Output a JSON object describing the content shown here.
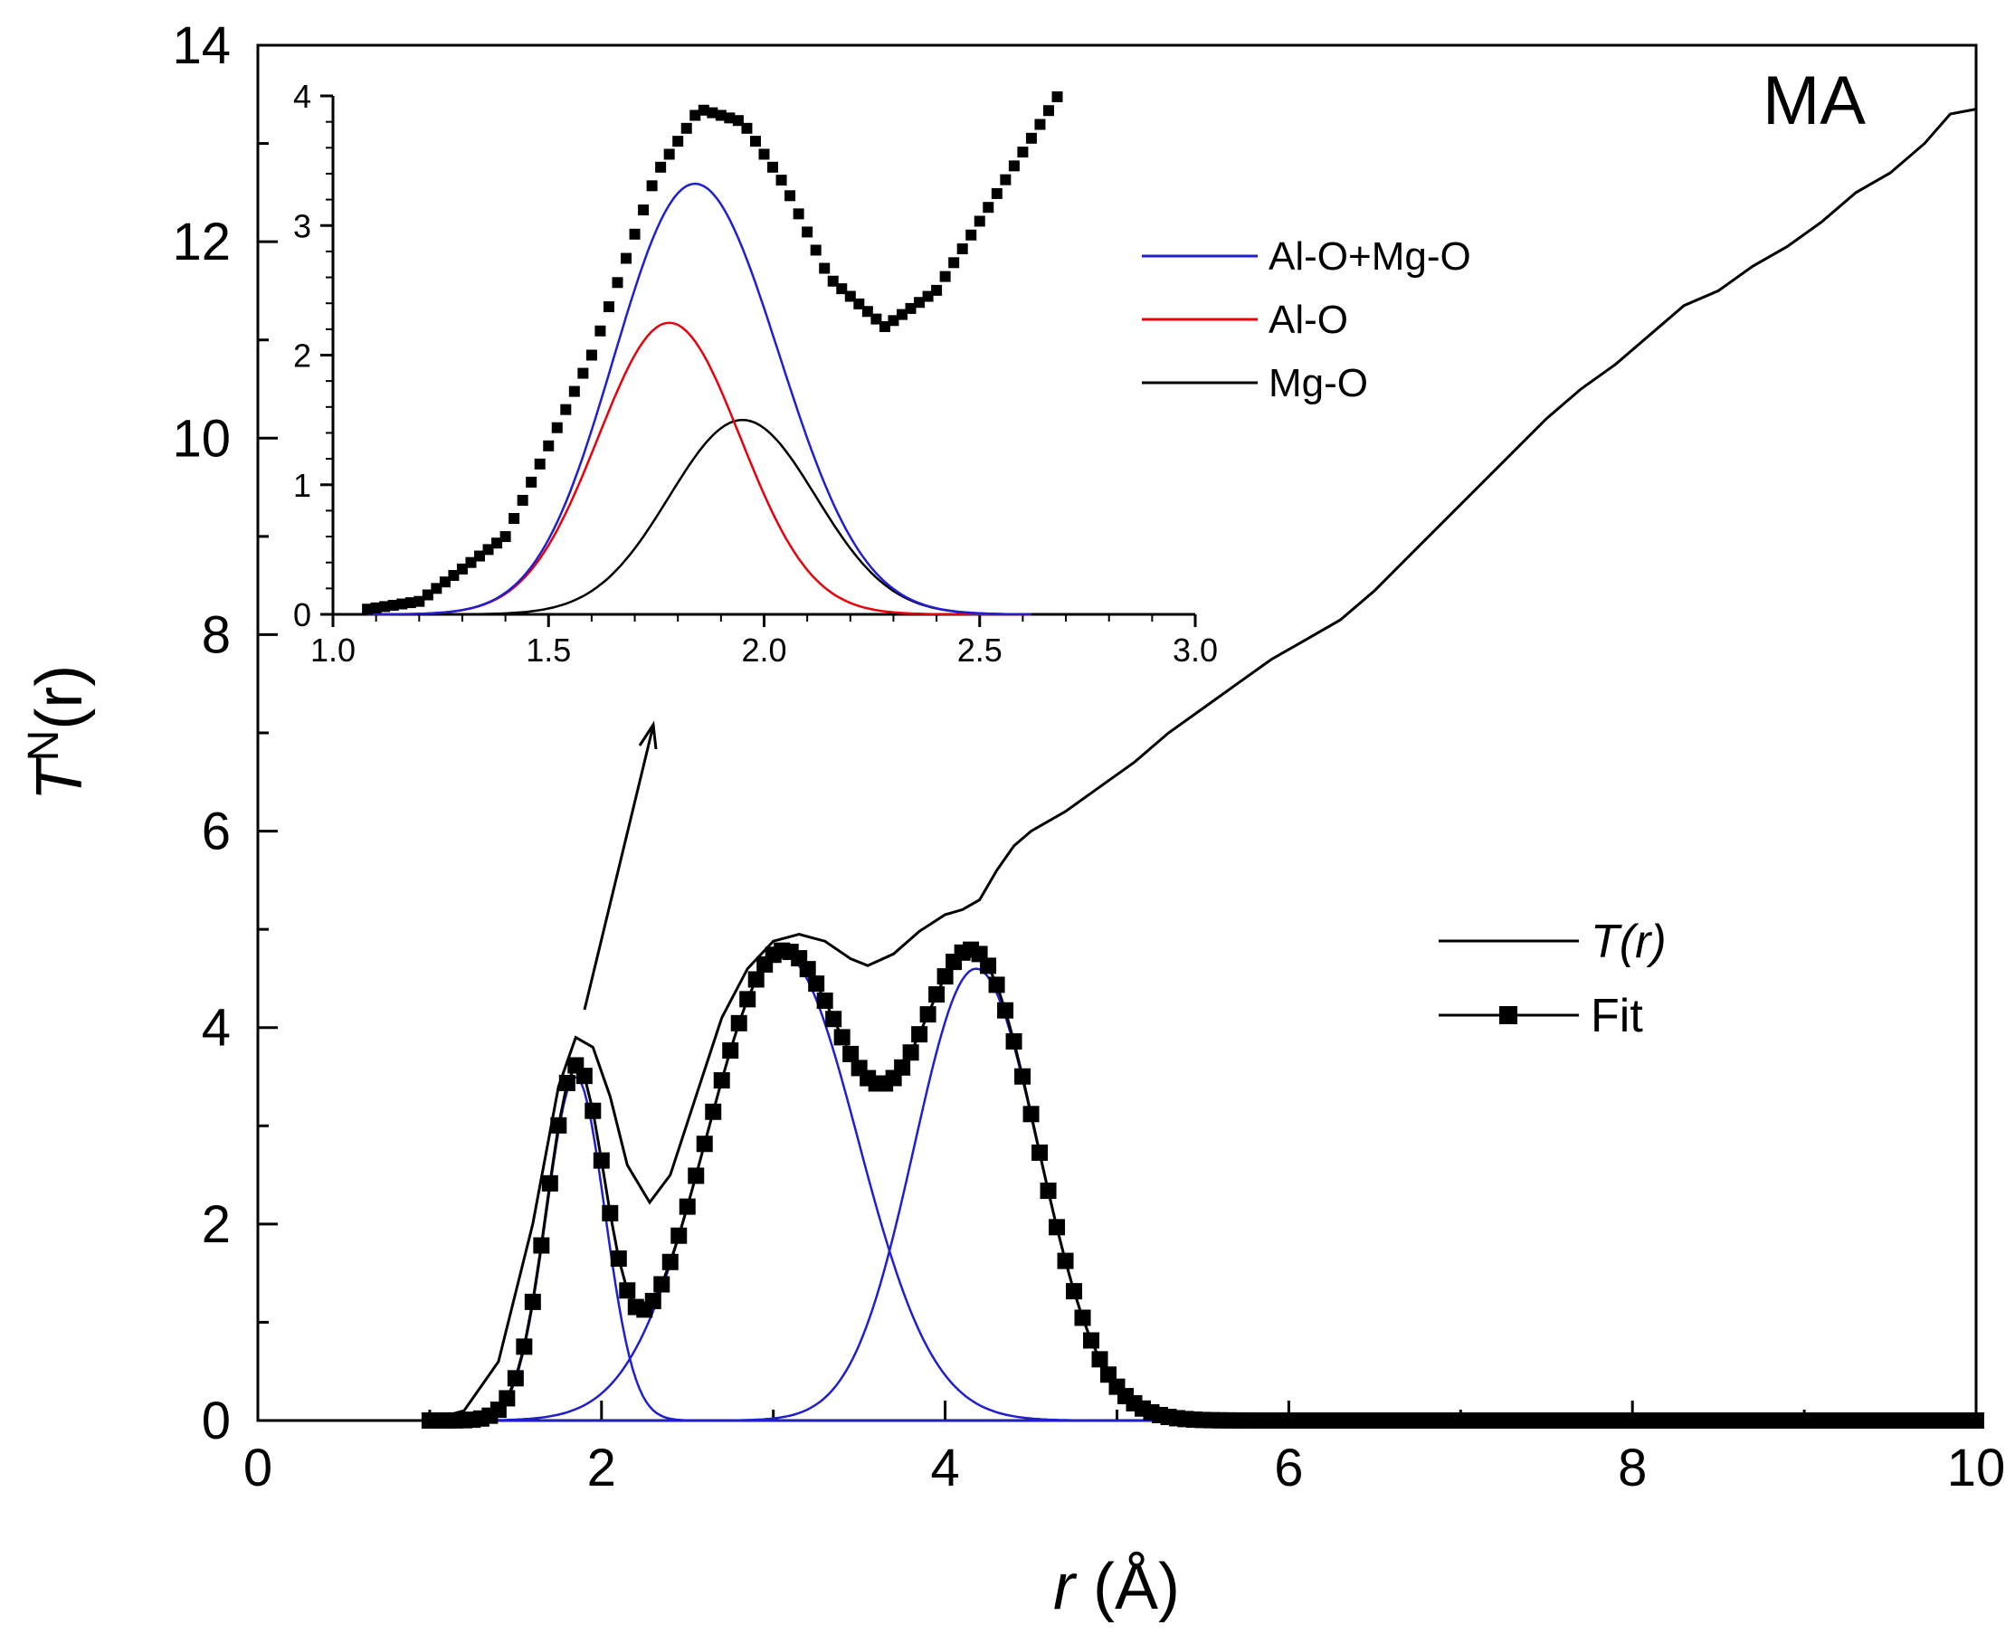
{
  "chart_data": [
    {
      "type": "line",
      "panel_label": "MA",
      "xlabel_var": "r",
      "xlabel_unit": " (Å)",
      "ylabel_var": "T",
      "ylabel_sup": "N",
      "ylabel_rest": "(r)",
      "xlim": [
        0,
        10
      ],
      "ylim": [
        0,
        14
      ],
      "xticks": [
        0,
        2,
        4,
        6,
        8,
        10
      ],
      "yticks": [
        0,
        2,
        4,
        6,
        8,
        10,
        12,
        14
      ],
      "grid": false,
      "legend_position": "right",
      "legend": [
        {
          "label": "T(r)",
          "style": "line",
          "color": "#000000"
        },
        {
          "label": "Fit",
          "style": "line-with-square-markers",
          "color": "#000000"
        }
      ],
      "series": [
        {
          "name": "T(r)",
          "color": "#000000",
          "points": [
            [
              0,
              0
            ],
            [
              1.0,
              0
            ],
            [
              1.2,
              0.1
            ],
            [
              1.4,
              0.6
            ],
            [
              1.6,
              2.0
            ],
            [
              1.75,
              3.4
            ],
            [
              1.85,
              3.9
            ],
            [
              1.95,
              3.8
            ],
            [
              2.05,
              3.3
            ],
            [
              2.15,
              2.6
            ],
            [
              2.28,
              2.22
            ],
            [
              2.4,
              2.5
            ],
            [
              2.55,
              3.3
            ],
            [
              2.7,
              4.1
            ],
            [
              2.85,
              4.6
            ],
            [
              3.0,
              4.88
            ],
            [
              3.15,
              4.95
            ],
            [
              3.3,
              4.88
            ],
            [
              3.45,
              4.7
            ],
            [
              3.55,
              4.63
            ],
            [
              3.7,
              4.75
            ],
            [
              3.85,
              4.98
            ],
            [
              4.0,
              5.15
            ],
            [
              4.1,
              5.2
            ],
            [
              4.2,
              5.3
            ],
            [
              4.3,
              5.6
            ],
            [
              4.4,
              5.85
            ],
            [
              4.5,
              6.0
            ],
            [
              4.7,
              6.2
            ],
            [
              4.9,
              6.45
            ],
            [
              5.1,
              6.7
            ],
            [
              5.3,
              7.0
            ],
            [
              5.5,
              7.25
            ],
            [
              5.7,
              7.5
            ],
            [
              5.9,
              7.75
            ],
            [
              6.1,
              7.95
            ],
            [
              6.3,
              8.15
            ],
            [
              6.5,
              8.45
            ],
            [
              6.7,
              8.8
            ],
            [
              6.9,
              9.15
            ],
            [
              7.1,
              9.5
            ],
            [
              7.3,
              9.85
            ],
            [
              7.5,
              10.2
            ],
            [
              7.7,
              10.5
            ],
            [
              7.9,
              10.75
            ],
            [
              8.1,
              11.05
            ],
            [
              8.3,
              11.35
            ],
            [
              8.5,
              11.5
            ],
            [
              8.7,
              11.75
            ],
            [
              8.9,
              11.95
            ],
            [
              9.1,
              12.2
            ],
            [
              9.3,
              12.5
            ],
            [
              9.5,
              12.7
            ],
            [
              9.7,
              13.0
            ],
            [
              9.85,
              13.3
            ],
            [
              10.0,
              13.35
            ]
          ]
        },
        {
          "name": "Fit",
          "color": "#000000",
          "marker": "square",
          "x_range": [
            1.0,
            10.0
          ],
          "marker_step": 0.05
        }
      ],
      "components": [
        {
          "color": "#1f1fd0",
          "amplitude": 3.5,
          "center": 1.85,
          "sigma": 0.17
        },
        {
          "color": "#1f1fd0",
          "amplitude": 4.75,
          "center": 3.05,
          "sigma": 0.44
        },
        {
          "color": "#1f1fd0",
          "amplitude": 4.6,
          "center": 4.18,
          "sigma": 0.36
        }
      ]
    },
    {
      "type": "line",
      "position": "inset",
      "xlim": [
        1.0,
        3.0
      ],
      "ylim": [
        0,
        4
      ],
      "xticks": [
        "1.0",
        "1.5",
        "2.0",
        "2.5",
        "3.0"
      ],
      "yticks": [
        0,
        1,
        2,
        3,
        4
      ],
      "grid": false,
      "legend_position": "top-right",
      "legend": [
        {
          "label": "Al-O+Mg-O",
          "color": "#1f1fd0"
        },
        {
          "label": "Al-O",
          "color": "#e8000b"
        },
        {
          "label": "Mg-O",
          "color": "#000000"
        }
      ],
      "series": [
        {
          "name": "Al-O+Mg-O",
          "color": "#1f1fd0",
          "x_range": [
            1.08,
            2.62
          ]
        },
        {
          "name": "Al-O",
          "color": "#e8000b",
          "amplitude": 2.25,
          "center": 1.78,
          "sigma": 0.165,
          "x_range": [
            1.08,
            2.62
          ]
        },
        {
          "name": "Mg-O",
          "color": "#000000",
          "amplitude": 1.5,
          "center": 1.95,
          "sigma": 0.17,
          "x_range": [
            1.08,
            2.62
          ]
        },
        {
          "name": "Fit",
          "color": "#000000",
          "marker": "square",
          "x_range": [
            1.08,
            2.7
          ],
          "marker_step": 0.02
        }
      ]
    }
  ]
}
